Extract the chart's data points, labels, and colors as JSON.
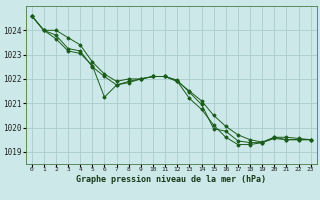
{
  "title": "Graphe pression niveau de la mer (hPa)",
  "background_color": "#cce8e8",
  "grid_color": "#aacccc",
  "line_color": "#1a5c1a",
  "x_ticks": [
    0,
    1,
    2,
    3,
    4,
    5,
    6,
    7,
    8,
    9,
    10,
    11,
    12,
    13,
    14,
    15,
    16,
    17,
    18,
    19,
    20,
    21,
    22,
    23
  ],
  "ylim": [
    1018.5,
    1025.0
  ],
  "yticks": [
    1019,
    1020,
    1021,
    1022,
    1023,
    1024
  ],
  "series": [
    [
      1024.6,
      1024.0,
      1024.0,
      1023.7,
      1023.4,
      1022.7,
      1022.2,
      1021.9,
      1022.0,
      1022.0,
      1022.1,
      1022.1,
      1021.9,
      1021.5,
      1021.1,
      1020.5,
      1020.05,
      1019.7,
      1019.5,
      1019.4,
      1019.6,
      1019.6,
      1019.55,
      1019.5
    ],
    [
      1024.6,
      1024.0,
      1023.8,
      1023.25,
      1023.15,
      1022.5,
      1022.1,
      1021.75,
      1021.85,
      1022.0,
      1022.1,
      1022.1,
      1021.9,
      1021.2,
      1020.75,
      1020.1,
      1019.6,
      1019.3,
      1019.3,
      1019.38,
      1019.55,
      1019.5,
      1019.5,
      1019.5
    ],
    [
      1024.6,
      1024.0,
      1023.65,
      1023.15,
      1023.05,
      1022.55,
      1021.25,
      1021.75,
      1021.9,
      1022.0,
      1022.1,
      1022.1,
      1021.95,
      1021.45,
      1020.95,
      1019.95,
      1019.85,
      1019.45,
      1019.38,
      1019.38,
      1019.6,
      1019.5,
      1019.5,
      1019.5
    ]
  ]
}
